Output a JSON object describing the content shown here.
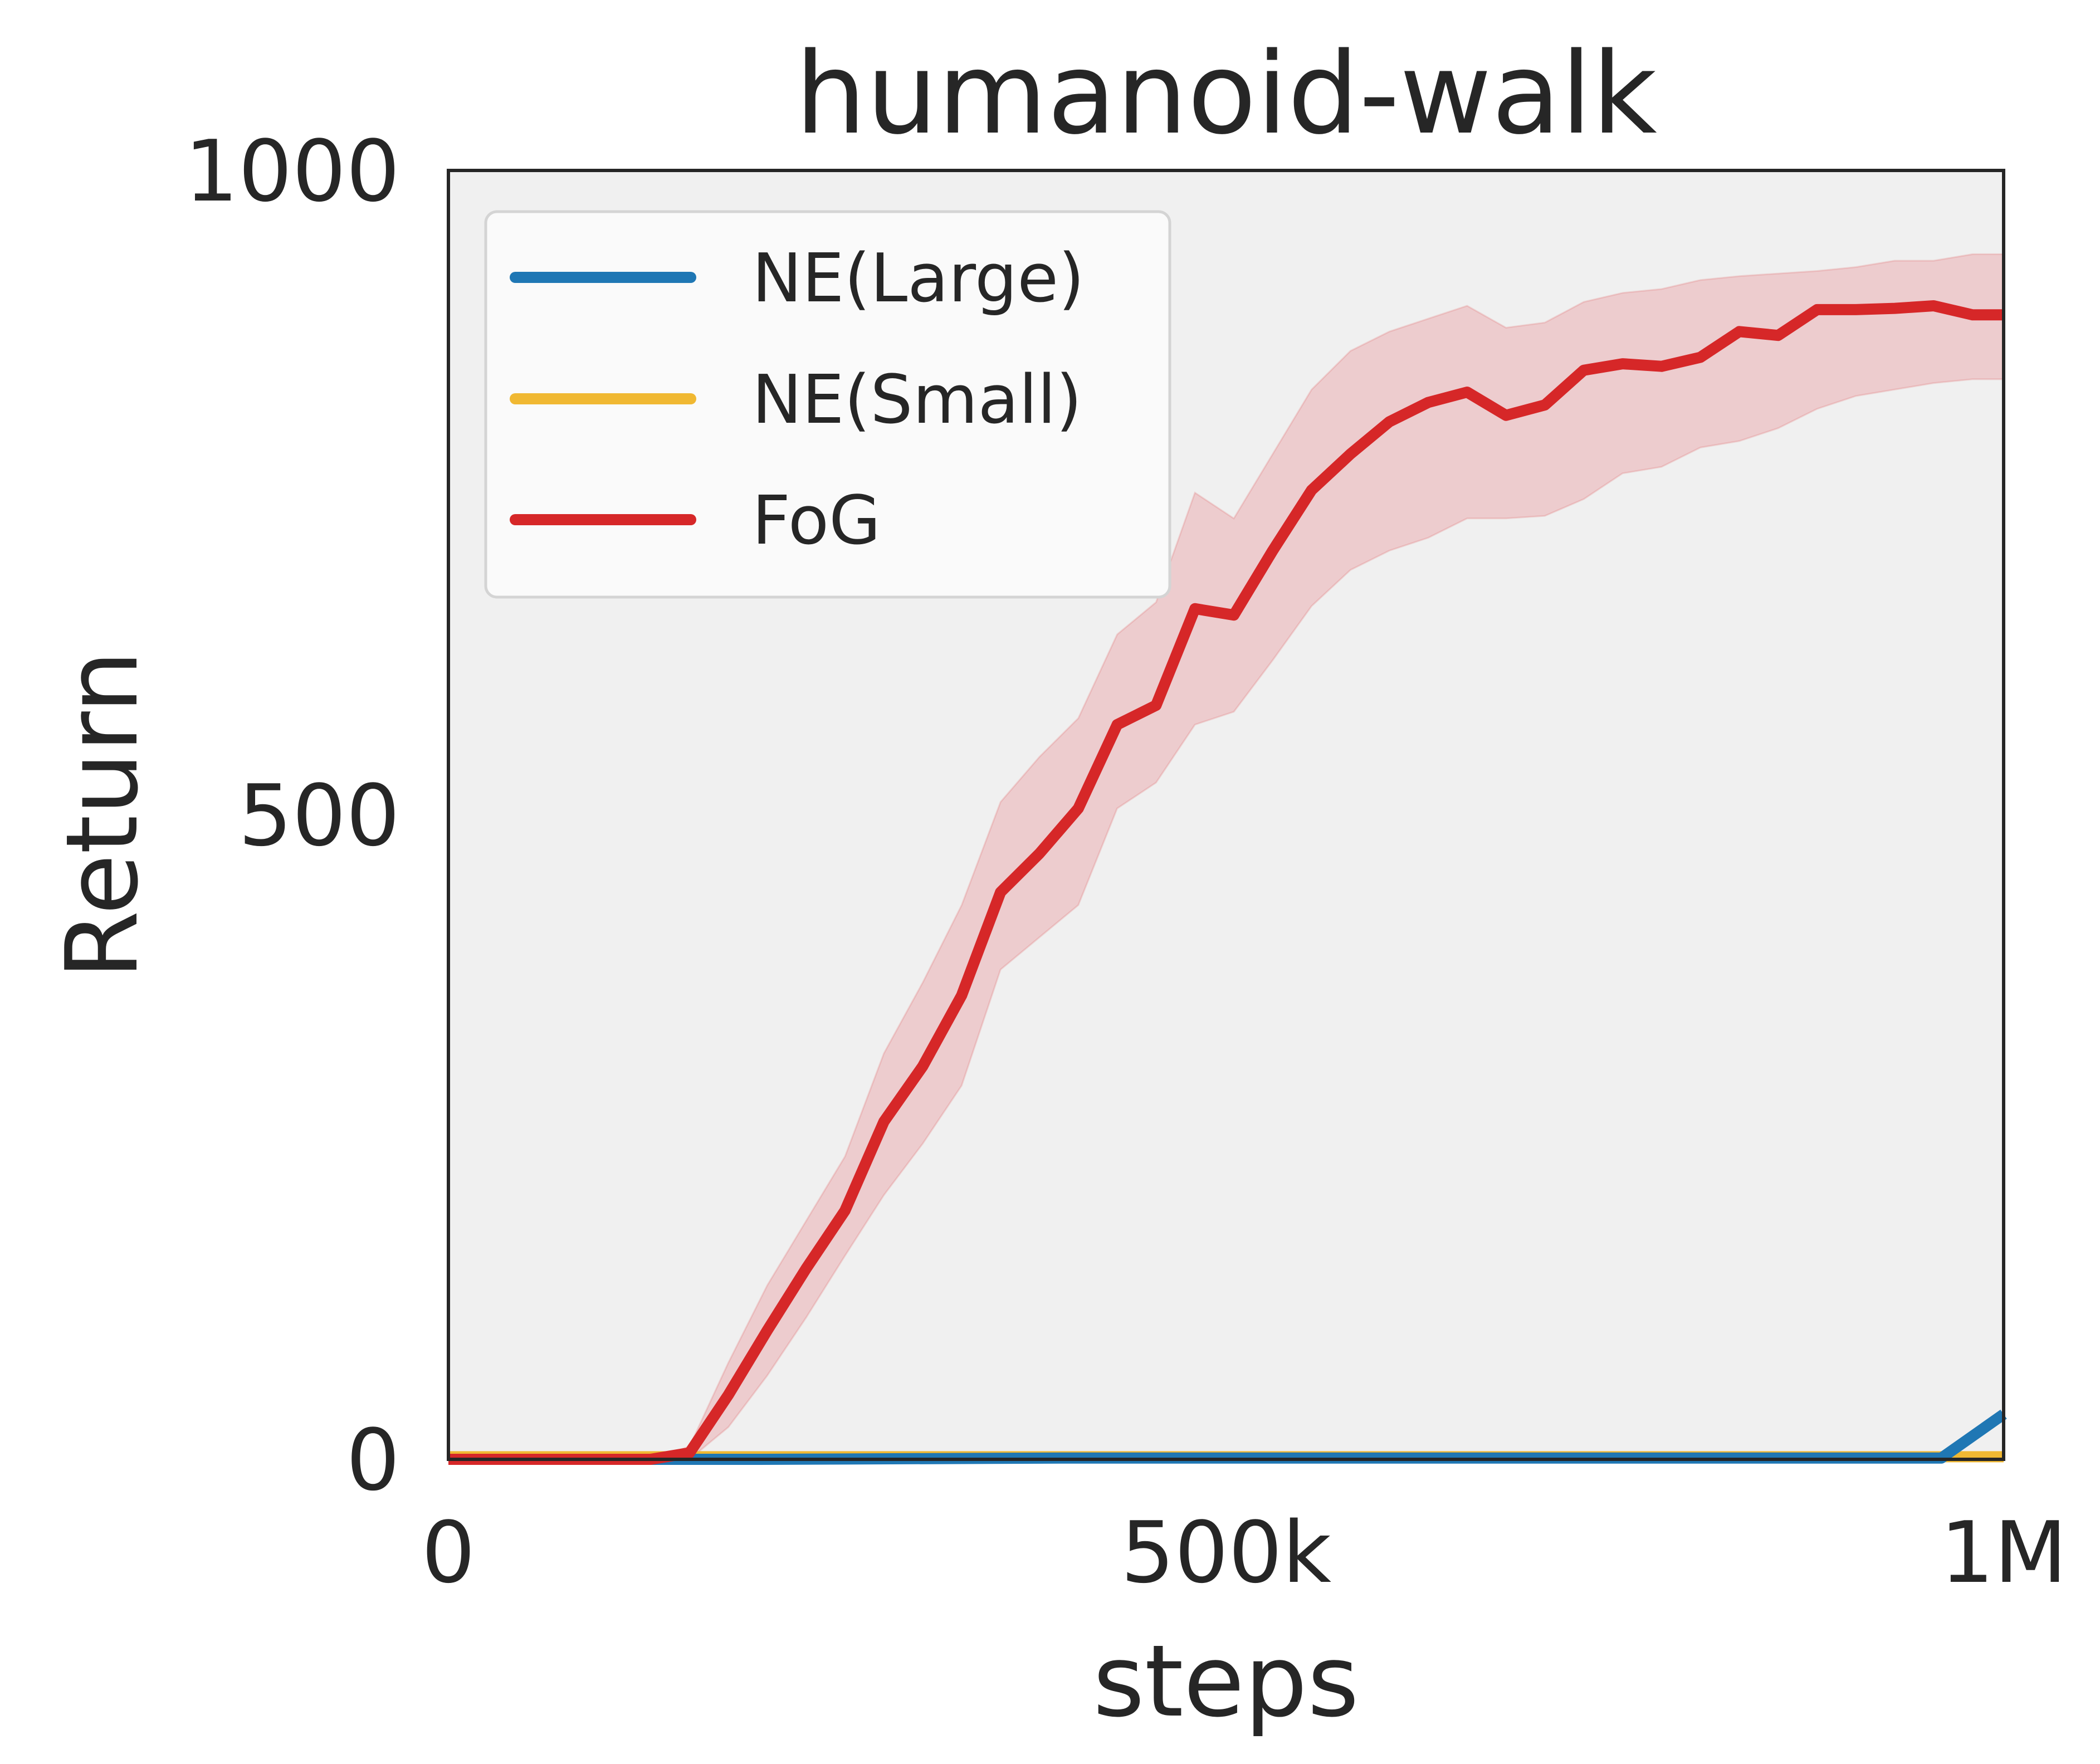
{
  "chart_data": {
    "type": "line",
    "title": "humanoid-walk",
    "xlabel": "steps",
    "ylabel": "Return",
    "xlim": [
      0,
      1000000
    ],
    "ylim": [
      0,
      1000
    ],
    "xticks": [
      {
        "value": 0,
        "label": "0"
      },
      {
        "value": 500000,
        "label": "500k"
      },
      {
        "value": 1000000,
        "label": "1M"
      }
    ],
    "yticks": [
      {
        "value": 0,
        "label": "0"
      },
      {
        "value": 500,
        "label": "500"
      },
      {
        "value": 1000,
        "label": "1000"
      }
    ],
    "grid": false,
    "legend_position": "upper-left",
    "series": [
      {
        "name": "NE(Large)",
        "color": "#1f77b4",
        "x": [
          0,
          200000,
          400000,
          600000,
          800000,
          960000,
          1000000
        ],
        "y": [
          0,
          0,
          1,
          1,
          1,
          1,
          35
        ]
      },
      {
        "name": "NE(Small)",
        "color": "#f0b832",
        "x": [
          0,
          200000,
          400000,
          600000,
          800000,
          1000000
        ],
        "y": [
          2,
          2,
          2,
          2,
          2,
          2
        ]
      },
      {
        "name": "FoG",
        "color": "#d62728",
        "band_color": "#ecc8ca",
        "x": [
          0,
          130000,
          155000,
          180000,
          205000,
          230000,
          255000,
          280000,
          305000,
          330000,
          355000,
          380000,
          405000,
          430000,
          455000,
          480000,
          505000,
          530000,
          555000,
          580000,
          605000,
          630000,
          655000,
          680000,
          705000,
          730000,
          755000,
          780000,
          805000,
          830000,
          855000,
          880000,
          905000,
          930000,
          955000,
          980000,
          1000000
        ],
        "y": [
          0,
          0,
          5,
          50,
          100,
          148,
          193,
          262,
          305,
          360,
          440,
          470,
          505,
          570,
          585,
          660,
          655,
          705,
          752,
          780,
          805,
          820,
          828,
          810,
          818,
          845,
          850,
          848,
          855,
          875,
          872,
          892,
          892,
          893,
          895,
          888,
          888
        ],
        "lower": [
          0,
          0,
          0,
          25,
          65,
          110,
          158,
          205,
          245,
          290,
          380,
          405,
          430,
          505,
          525,
          570,
          580,
          620,
          662,
          690,
          705,
          715,
          730,
          730,
          732,
          745,
          765,
          770,
          785,
          790,
          800,
          815,
          825,
          830,
          835,
          838,
          838
        ],
        "upper": [
          0,
          0,
          10,
          75,
          135,
          185,
          235,
          315,
          370,
          430,
          510,
          545,
          575,
          640,
          665,
          750,
          730,
          780,
          830,
          860,
          875,
          885,
          895,
          878,
          882,
          898,
          905,
          908,
          915,
          918,
          920,
          922,
          925,
          930,
          930,
          935,
          935
        ]
      }
    ]
  }
}
